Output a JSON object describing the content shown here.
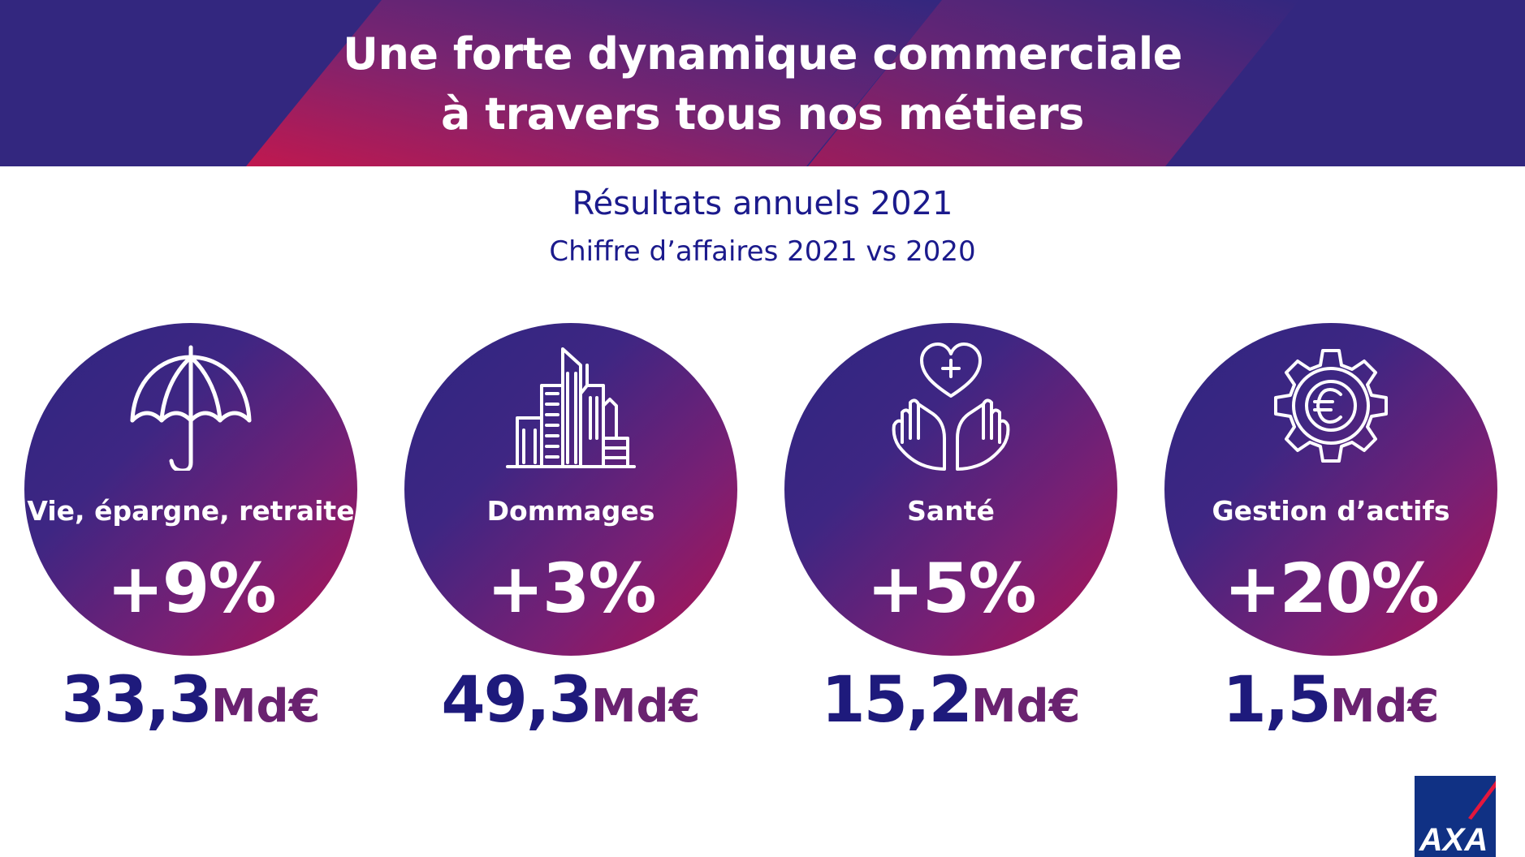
{
  "header": {
    "title_line1": "Une forte dynamique commerciale",
    "title_line2": "à travers tous nos métiers"
  },
  "subtitle": {
    "line1": "Résultats annuels 2021",
    "line2": "Chiffre d’affaires 2021 vs 2020"
  },
  "cards": [
    {
      "icon": "umbrella-icon",
      "label": "Vie, épargne, retraite",
      "change": "+9%",
      "amount": "33,3",
      "unit": "Md€"
    },
    {
      "icon": "city-buildings-icon",
      "label": "Dommages",
      "change": "+3%",
      "amount": "49,3",
      "unit": "Md€"
    },
    {
      "icon": "hands-heart-icon",
      "label": "Santé",
      "change": "+5%",
      "amount": "15,2",
      "unit": "Md€"
    },
    {
      "icon": "euro-gear-icon",
      "label": "Gestion d’actifs",
      "change": "+20%",
      "amount": "1,5",
      "unit": "Md€"
    }
  ],
  "logo": {
    "text": "AXA"
  },
  "colors": {
    "banner": "#33277f",
    "accent_red": "#b0124f",
    "navy": "#1e1a7c",
    "purple_unit": "#6a2270"
  }
}
